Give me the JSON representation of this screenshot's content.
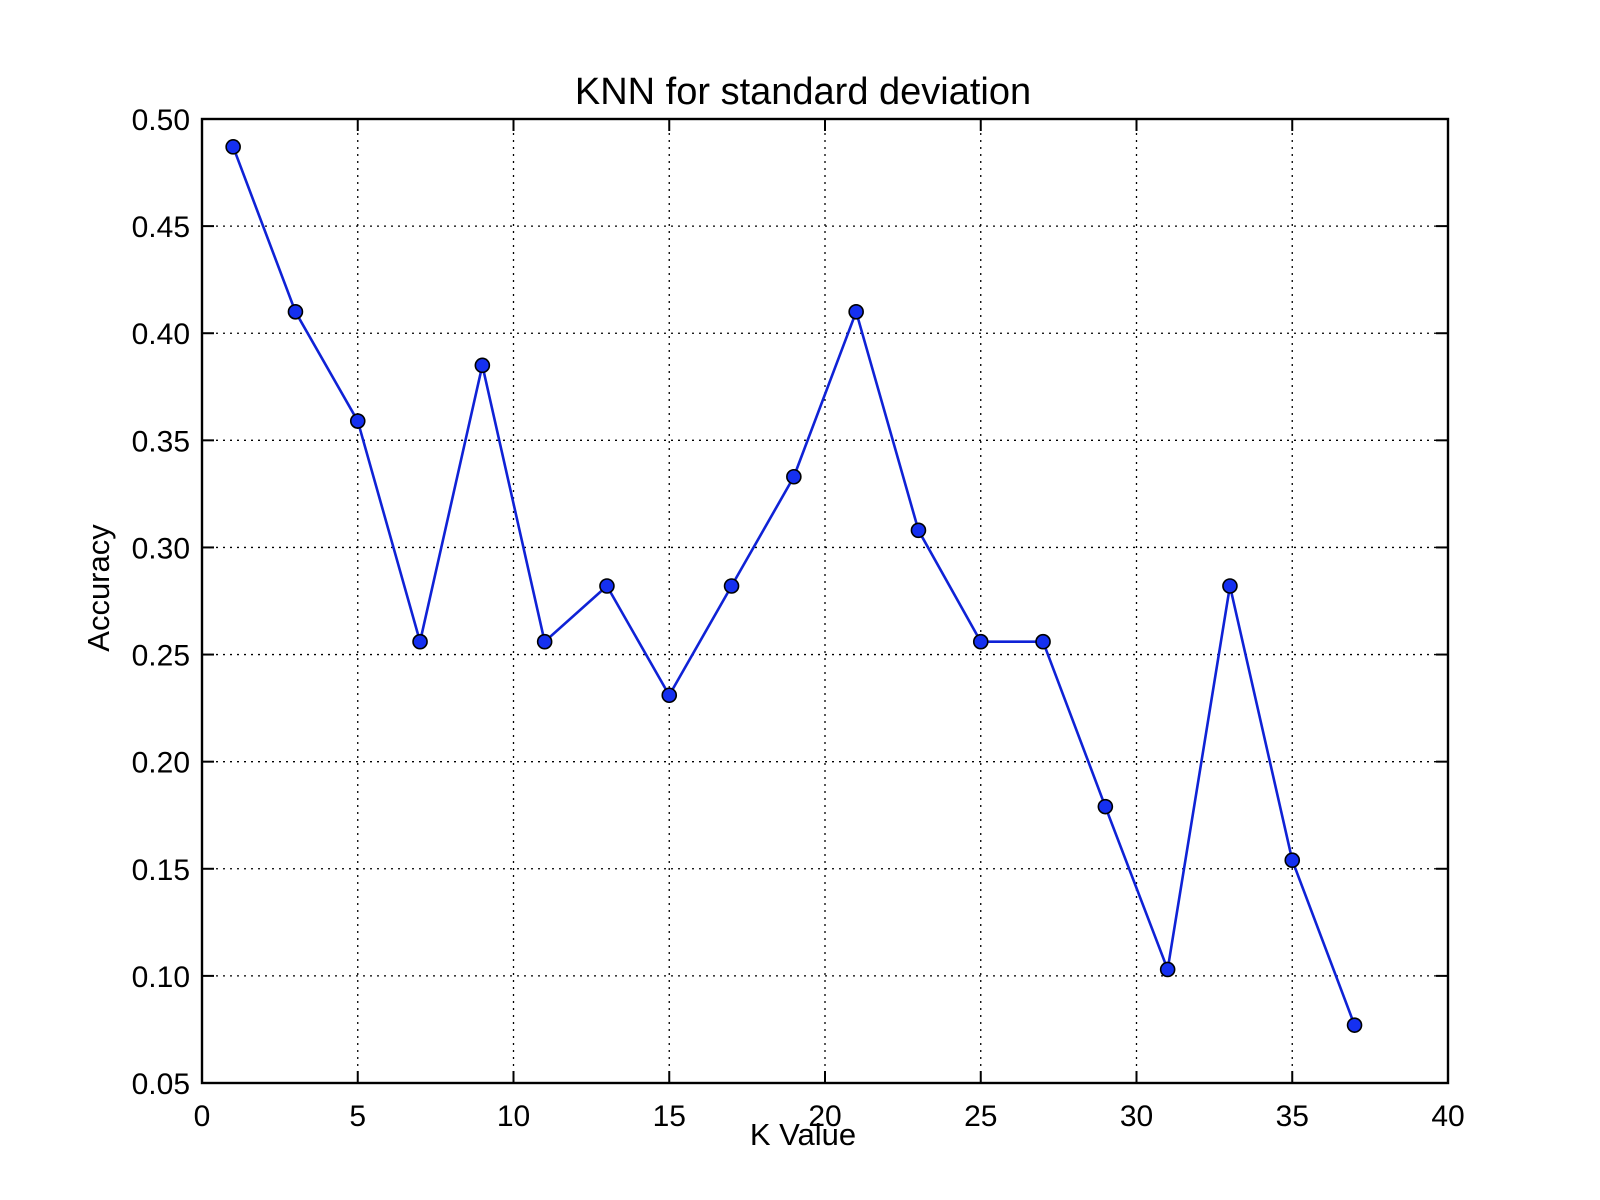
{
  "chart_data": {
    "type": "line",
    "title": "KNN for standard deviation",
    "xlabel": "K Value",
    "ylabel": "Accuracy",
    "xlim": [
      0,
      40
    ],
    "ylim": [
      0.05,
      0.5
    ],
    "grid": true,
    "x_ticks": [
      "0",
      "5",
      "10",
      "15",
      "20",
      "25",
      "30",
      "35",
      "40"
    ],
    "y_ticks": [
      "0.05",
      "0.10",
      "0.15",
      "0.20",
      "0.25",
      "0.30",
      "0.35",
      "0.40",
      "0.45",
      "0.50"
    ],
    "series": [
      {
        "name": "Accuracy",
        "color": "#0f22d6",
        "marker_color": "#1530f0",
        "x": [
          1,
          3,
          5,
          7,
          9,
          11,
          13,
          15,
          17,
          19,
          21,
          23,
          25,
          27,
          29,
          31,
          33,
          35,
          37
        ],
        "y": [
          0.487,
          0.41,
          0.359,
          0.256,
          0.385,
          0.256,
          0.282,
          0.231,
          0.282,
          0.333,
          0.41,
          0.308,
          0.256,
          0.256,
          0.179,
          0.103,
          0.282,
          0.154,
          0.077
        ]
      }
    ]
  }
}
